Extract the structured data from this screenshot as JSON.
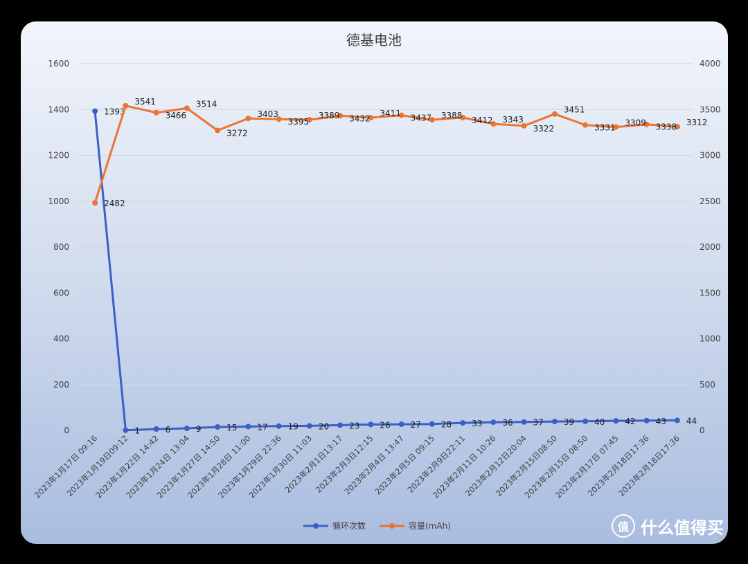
{
  "chart_data": {
    "type": "line",
    "title": "德基电池",
    "categories": [
      "2023年1月17日 09:16",
      "2023年1月19日09:12",
      "2023年1月22日 14:42",
      "2023年1月24日 13:04",
      "2023年1月27日 14:50",
      "2023年1月28日 11:00",
      "2023年1月29日 22:36",
      "2023年1月30日 11:03",
      "2023年2月1日13:17",
      "2023年2月3日12:15",
      "2023年2月4日 13:47",
      "2023年2月5日 09:15",
      "2023年2月9日22:11",
      "2023年2月11日 10:26",
      "2023年2月12日20:04",
      "2023年2月15日08:50",
      "2023年2月15日 08:50",
      "2023年2月17日 07:45",
      "2023年2月18日17:36",
      "2023年2月18日17:36"
    ],
    "series": [
      {
        "name": "循环次数",
        "axis": "left",
        "color": "#3a5fc6",
        "values": [
          1393,
          1,
          6,
          9,
          15,
          17,
          19,
          20,
          23,
          26,
          27,
          28,
          33,
          36,
          37,
          39,
          40,
          42,
          43,
          44
        ]
      },
      {
        "name": "容量(mAh)",
        "axis": "right",
        "color": "#ec7432",
        "values": [
          2482,
          3541,
          3466,
          3514,
          3272,
          3403,
          3395,
          3389,
          3432,
          3411,
          3437,
          3388,
          3412,
          3343,
          3322,
          3451,
          3331,
          3309,
          3338,
          3312
        ]
      }
    ],
    "y_left": {
      "ylim": [
        0,
        1600
      ],
      "ticks": [
        0,
        200,
        400,
        600,
        800,
        1000,
        1200,
        1400,
        1600
      ]
    },
    "y_right": {
      "ylim": [
        0,
        4000
      ],
      "ticks": [
        0,
        500,
        1000,
        1500,
        2000,
        2500,
        3000,
        3500,
        4000
      ]
    },
    "grid": true,
    "legend": "bottom"
  },
  "watermark": {
    "badge": "值",
    "text": "什么值得买"
  }
}
